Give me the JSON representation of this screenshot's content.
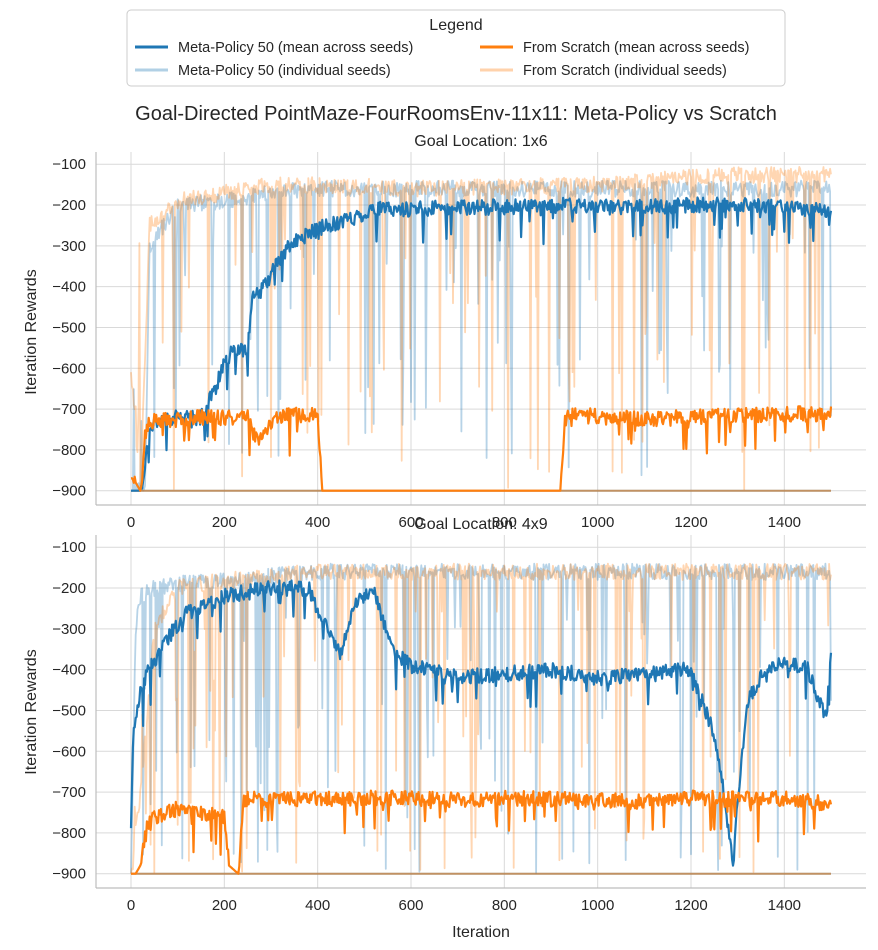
{
  "figure": {
    "suptitle": "Goal-Directed PointMaze-FourRoomsEnv-11x11: Meta-Policy vs Scratch",
    "xlabel": "Iteration",
    "ylabel": "Iteration Rewards"
  },
  "legend": {
    "title": "Legend",
    "entries": [
      {
        "label": "Meta-Policy 50 (mean across seeds)",
        "color": "#1f77b4",
        "style": "mean"
      },
      {
        "label": "Meta-Policy 50 (individual seeds)",
        "color": "#1f77b4",
        "style": "seed"
      },
      {
        "label": "From Scratch (mean across seeds)",
        "color": "#ff7f0e",
        "style": "mean"
      },
      {
        "label": "From Scratch (individual seeds)",
        "color": "#ff7f0e",
        "style": "seed"
      }
    ]
  },
  "colors": {
    "meta": "#1f77b4",
    "scratch": "#ff7f0e",
    "grid": "#d9d9d9",
    "spine": "#bdbdbd"
  },
  "chart_data": [
    {
      "type": "line",
      "title": "Goal Location: 1x6",
      "xlabel": "",
      "ylabel": "Iteration Rewards",
      "xlim": [
        -75,
        1575
      ],
      "ylim": [
        -935,
        -70
      ],
      "xticks": [
        0,
        200,
        400,
        600,
        800,
        1000,
        1200,
        1400
      ],
      "yticks": [
        -100,
        -200,
        -300,
        -400,
        -500,
        -600,
        -700,
        -800,
        -900
      ],
      "series": [
        {
          "name": "Meta-Policy 50 (mean across seeds)",
          "x": [
            0,
            20,
            30,
            40,
            60,
            100,
            150,
            160,
            170,
            180,
            190,
            200,
            215,
            230,
            250,
            260,
            280,
            300,
            320,
            340,
            380,
            420,
            480,
            520,
            600,
            700,
            800,
            900,
            1000,
            1100,
            1200,
            1300,
            1400,
            1500
          ],
          "y": [
            -900,
            -900,
            -840,
            -740,
            -725,
            -722,
            -720,
            -700,
            -670,
            -650,
            -620,
            -590,
            -560,
            -555,
            -550,
            -430,
            -410,
            -370,
            -330,
            -300,
            -270,
            -250,
            -230,
            -210,
            -210,
            -205,
            -205,
            -200,
            -205,
            -205,
            -200,
            -200,
            -200,
            -220
          ]
        },
        {
          "name": "From Scratch (mean across seeds)",
          "x": [
            0,
            20,
            25,
            30,
            40,
            60,
            100,
            150,
            200,
            250,
            270,
            290,
            300,
            320,
            380,
            400,
            410,
            420,
            920,
            930,
            940,
            960,
            1000,
            1100,
            1200,
            1300,
            1400,
            1500
          ],
          "y": [
            -860,
            -900,
            -870,
            -770,
            -730,
            -725,
            -725,
            -720,
            -722,
            -720,
            -780,
            -760,
            -730,
            -715,
            -715,
            -712,
            -900,
            -900,
            -900,
            -730,
            -715,
            -715,
            -718,
            -725,
            -720,
            -715,
            -712,
            -712
          ]
        },
        {
          "name": "Meta-Policy 50 (individual seeds)",
          "x": [
            0,
            30,
            40,
            100,
            200,
            250,
            300,
            350,
            400,
            500,
            600,
            800,
            1000,
            1200,
            1400,
            1500
          ],
          "y": [
            -900,
            -900,
            -300,
            -200,
            -190,
            -180,
            -170,
            -165,
            -160,
            -160,
            -160,
            -160,
            -160,
            -160,
            -160,
            -160
          ]
        },
        {
          "name": "From Scratch (individual seeds)",
          "x": [
            0,
            20,
            40,
            100,
            200,
            300,
            400,
            600,
            800,
            1000,
            1200,
            1400,
            1500
          ],
          "y": [
            -600,
            -900,
            -250,
            -190,
            -170,
            -150,
            -150,
            -160,
            -155,
            -150,
            -130,
            -125,
            -125
          ]
        }
      ]
    },
    {
      "type": "line",
      "title": "Goal Location: 4x9",
      "xlabel": "Iteration",
      "ylabel": "Iteration Rewards",
      "xlim": [
        -75,
        1575
      ],
      "ylim": [
        -935,
        -70
      ],
      "xticks": [
        0,
        200,
        400,
        600,
        800,
        1000,
        1200,
        1400
      ],
      "yticks": [
        -100,
        -200,
        -300,
        -400,
        -500,
        -600,
        -700,
        -800,
        -900
      ],
      "series": [
        {
          "name": "Meta-Policy 50 (mean across seeds)",
          "x": [
            0,
            5,
            15,
            30,
            50,
            80,
            120,
            160,
            200,
            250,
            300,
            350,
            380,
            420,
            450,
            480,
            520,
            560,
            600,
            700,
            800,
            900,
            1000,
            1100,
            1200,
            1250,
            1270,
            1290,
            1300,
            1320,
            1350,
            1400,
            1450,
            1490,
            1500
          ],
          "y": [
            -780,
            -560,
            -480,
            -420,
            -380,
            -320,
            -260,
            -240,
            -220,
            -210,
            -200,
            -200,
            -200,
            -300,
            -360,
            -240,
            -200,
            -350,
            -390,
            -420,
            -410,
            -400,
            -420,
            -410,
            -400,
            -560,
            -700,
            -880,
            -720,
            -480,
            -420,
            -380,
            -400,
            -520,
            -350
          ]
        },
        {
          "name": "From Scratch (mean across seeds)",
          "x": [
            0,
            10,
            20,
            30,
            50,
            100,
            150,
            200,
            210,
            230,
            240,
            260,
            300,
            400,
            500,
            600,
            700,
            800,
            1000,
            1100,
            1200,
            1400,
            1500
          ],
          "y": [
            -900,
            -900,
            -880,
            -790,
            -760,
            -740,
            -750,
            -760,
            -880,
            -900,
            -720,
            -715,
            -720,
            -715,
            -715,
            -715,
            -720,
            -715,
            -720,
            -725,
            -715,
            -715,
            -730
          ]
        },
        {
          "name": "Meta-Policy 50 (individual seeds)",
          "x": [
            0,
            10,
            20,
            50,
            100,
            200,
            300,
            400,
            600,
            800,
            1000,
            1200,
            1400,
            1500
          ],
          "y": [
            -900,
            -300,
            -220,
            -200,
            -190,
            -180,
            -170,
            -160,
            -160,
            -160,
            -160,
            -160,
            -160,
            -160
          ]
        },
        {
          "name": "From Scratch (individual seeds)",
          "x": [
            0,
            20,
            50,
            100,
            200,
            300,
            400,
            600,
            800,
            1000,
            1200,
            1400,
            1500
          ],
          "y": [
            -900,
            -700,
            -300,
            -200,
            -180,
            -170,
            -160,
            -160,
            -160,
            -160,
            -160,
            -160,
            -160
          ]
        }
      ]
    }
  ]
}
